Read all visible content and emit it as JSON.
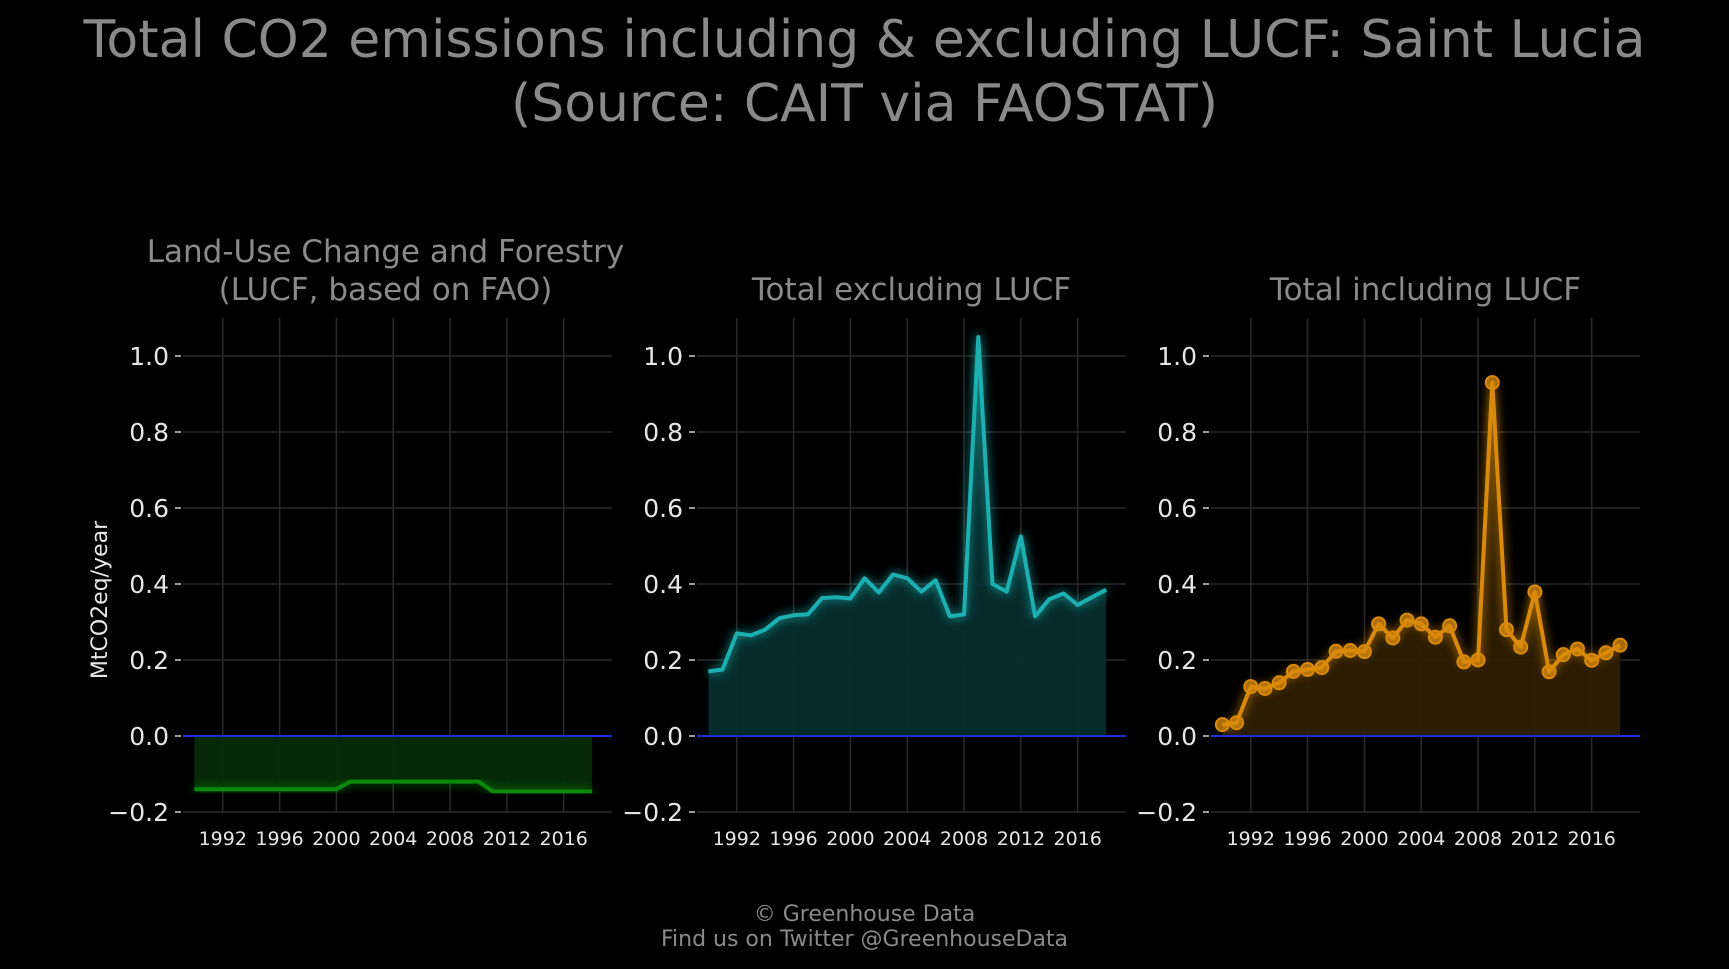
{
  "title_line1": "Total CO2 emissions including & excluding LUCF: Saint Lucia",
  "title_line2": "(Source: CAIT via FAOSTAT)",
  "footer_line1": "© Greenhouse Data",
  "footer_line2": "Find us on Twitter @GreenhouseData",
  "chart_data": [
    {
      "type": "area",
      "title_lines": [
        "Land-Use Change and Forestry",
        "(LUCF, based on FAO)"
      ],
      "ylabel": "MtCO2eq/year",
      "color": "#0a8a0a",
      "fill": "#062b06",
      "markers": false,
      "x": [
        1990,
        1991,
        1992,
        1993,
        1994,
        1995,
        1996,
        1997,
        1998,
        1999,
        2000,
        2001,
        2002,
        2003,
        2004,
        2005,
        2006,
        2007,
        2008,
        2009,
        2010,
        2011,
        2012,
        2013,
        2014,
        2015,
        2016,
        2017,
        2018
      ],
      "y": [
        -0.14,
        -0.14,
        -0.14,
        -0.14,
        -0.14,
        -0.14,
        -0.14,
        -0.14,
        -0.14,
        -0.14,
        -0.14,
        -0.12,
        -0.12,
        -0.12,
        -0.12,
        -0.12,
        -0.12,
        -0.12,
        -0.12,
        -0.12,
        -0.12,
        -0.146,
        -0.146,
        -0.146,
        -0.146,
        -0.146,
        -0.146,
        -0.146,
        -0.146
      ],
      "ylim": [
        -0.2,
        1.1
      ],
      "xlim": [
        1989.2,
        2019.4
      ],
      "yticks": [
        -0.2,
        0.0,
        0.2,
        0.4,
        0.6,
        0.8,
        1.0
      ],
      "ytick_labels": [
        "−0.2",
        "0.0",
        "0.2",
        "0.4",
        "0.6",
        "0.8",
        "1.0"
      ],
      "xticks": [
        1992,
        1996,
        2000,
        2004,
        2008,
        2012,
        2016
      ],
      "grid": true
    },
    {
      "type": "area",
      "title_lines": [
        "Total excluding LUCF"
      ],
      "color": "#1ab0b0",
      "fill": "#062d2d",
      "markers": false,
      "x": [
        1990,
        1991,
        1992,
        1993,
        1994,
        1995,
        1996,
        1997,
        1998,
        1999,
        2000,
        2001,
        2002,
        2003,
        2004,
        2005,
        2006,
        2007,
        2008,
        2009,
        2010,
        2011,
        2012,
        2013,
        2014,
        2015,
        2016,
        2017,
        2018
      ],
      "y": [
        0.17,
        0.175,
        0.27,
        0.265,
        0.28,
        0.31,
        0.318,
        0.32,
        0.363,
        0.365,
        0.362,
        0.415,
        0.378,
        0.425,
        0.415,
        0.38,
        0.41,
        0.315,
        0.32,
        1.05,
        0.4,
        0.38,
        0.525,
        0.315,
        0.36,
        0.375,
        0.345,
        0.365,
        0.385
      ],
      "ylim": [
        -0.2,
        1.1
      ],
      "xlim": [
        1989.2,
        2019.4
      ],
      "yticks": [
        -0.2,
        0.0,
        0.2,
        0.4,
        0.6,
        0.8,
        1.0
      ],
      "ytick_labels": [
        "−0.2",
        "0.0",
        "0.2",
        "0.4",
        "0.6",
        "0.8",
        "1.0"
      ],
      "xticks": [
        1992,
        1996,
        2000,
        2004,
        2008,
        2012,
        2016
      ],
      "grid": true
    },
    {
      "type": "area",
      "title_lines": [
        "Total including LUCF"
      ],
      "color": "#d98a0b",
      "fill": "#2e1d02",
      "markers": true,
      "x": [
        1990,
        1991,
        1992,
        1993,
        1994,
        1995,
        1996,
        1997,
        1998,
        1999,
        2000,
        2001,
        2002,
        2003,
        2004,
        2005,
        2006,
        2007,
        2008,
        2009,
        2010,
        2011,
        2012,
        2013,
        2014,
        2015,
        2016,
        2017,
        2018
      ],
      "y": [
        0.03,
        0.035,
        0.13,
        0.125,
        0.14,
        0.17,
        0.175,
        0.18,
        0.223,
        0.225,
        0.222,
        0.295,
        0.258,
        0.305,
        0.295,
        0.26,
        0.29,
        0.195,
        0.2,
        0.93,
        0.28,
        0.234,
        0.379,
        0.169,
        0.214,
        0.229,
        0.199,
        0.219,
        0.239
      ],
      "ylim": [
        -0.2,
        1.1
      ],
      "xlim": [
        1989.2,
        2019.4
      ],
      "yticks": [
        -0.2,
        0.0,
        0.2,
        0.4,
        0.6,
        0.8,
        1.0
      ],
      "ytick_labels": [
        "−0.2",
        "0.0",
        "0.2",
        "0.4",
        "0.6",
        "0.8",
        "1.0"
      ],
      "xticks": [
        1992,
        1996,
        2000,
        2004,
        2008,
        2012,
        2016
      ],
      "grid": true
    }
  ]
}
